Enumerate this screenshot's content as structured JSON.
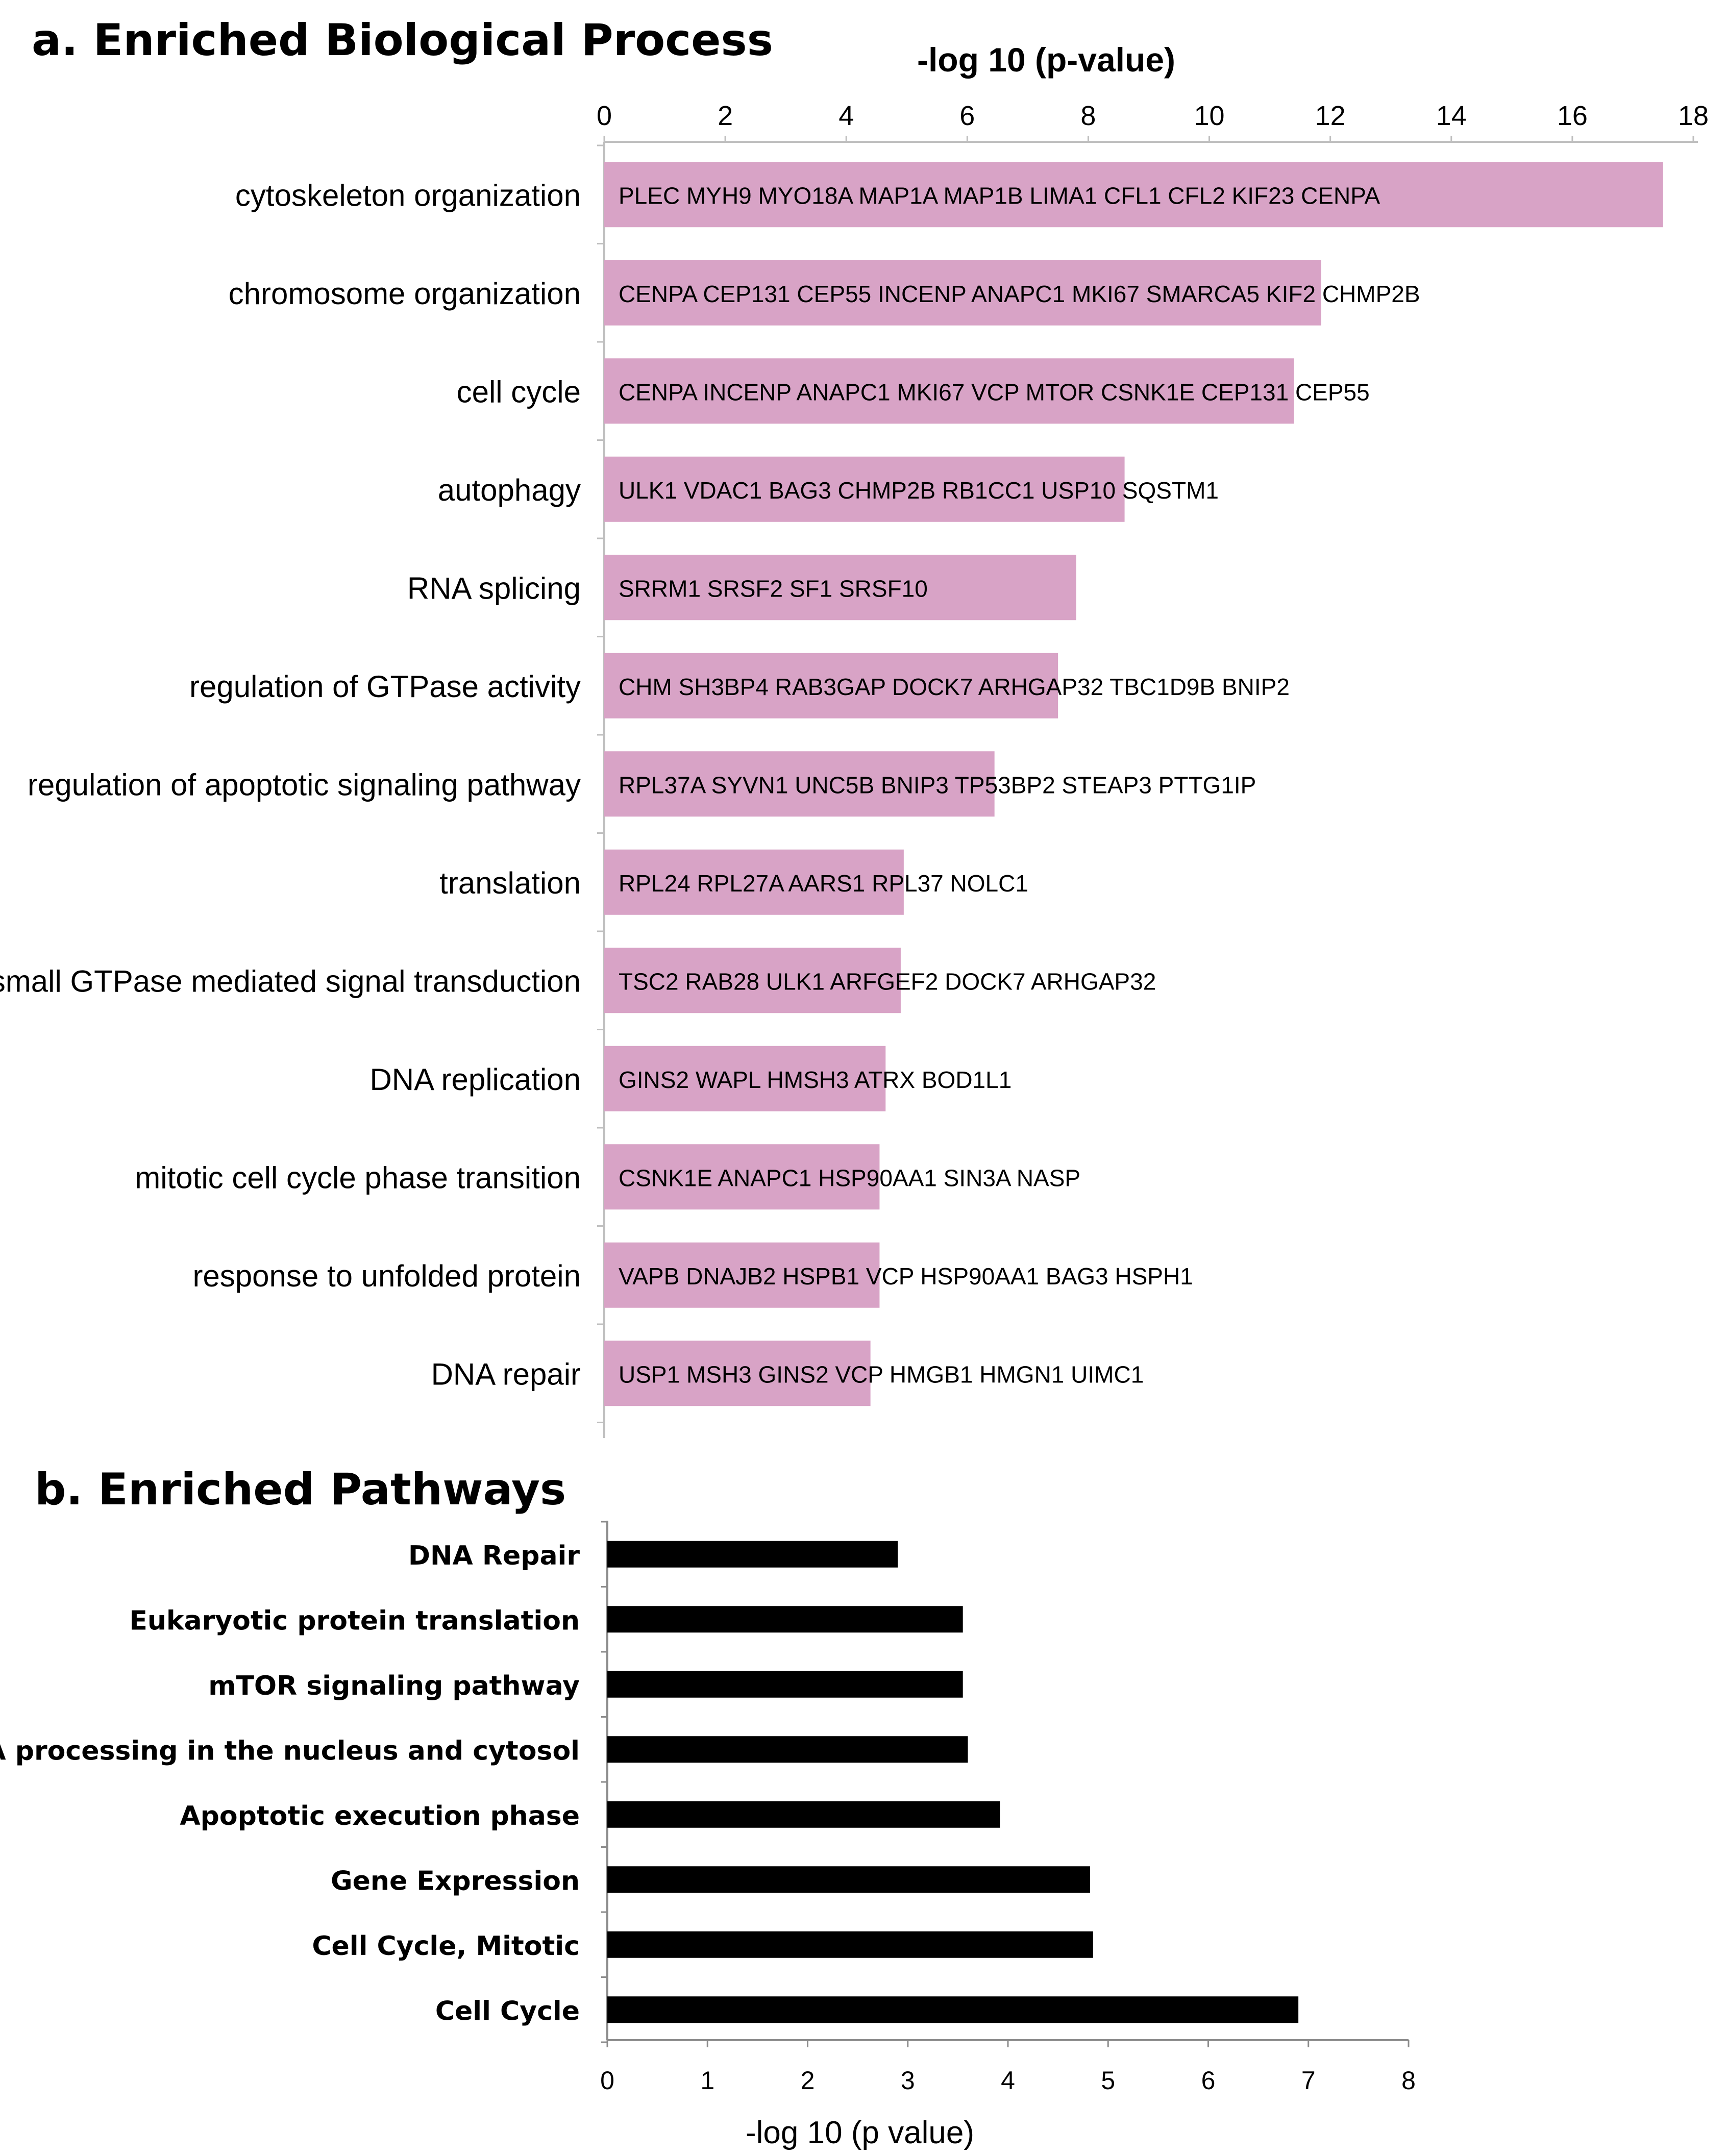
{
  "chart_data": [
    {
      "panel": "a",
      "title": "a. Enriched Biological Process",
      "type": "bar",
      "orientation": "horizontal",
      "xlabel": "-log 10 (p-value)",
      "xlim": [
        0,
        18
      ],
      "xticks": [
        "0",
        "2",
        "4",
        "6",
        "8",
        "10",
        "12",
        "14",
        "16",
        "18"
      ],
      "axis_position": "top",
      "bar_color": "#d8a3c6",
      "categories": [
        "cytoskeleton organization",
        "chromosome organization",
        "cell cycle",
        "autophagy",
        "RNA splicing",
        "regulation of GTPase activity",
        "regulation of apoptotic signaling pathway",
        "translation",
        "small GTPase mediated signal transduction",
        "DNA replication",
        "mitotic cell cycle phase transition",
        "response to unfolded protein",
        "DNA repair"
      ],
      "values": [
        17.5,
        11.85,
        11.4,
        8.6,
        7.8,
        7.5,
        6.45,
        4.95,
        4.9,
        4.65,
        4.55,
        4.55,
        4.4
      ],
      "annotations": [
        "PLEC MYH9 MYO18A MAP1A MAP1B LIMA1 CFL1 CFL2  KIF23  CENPA",
        "CENPA CEP131 CEP55  INCENP ANAPC1 MKI67  SMARCA5 KIF2 CHMP2B",
        "CENPA INCENP  ANAPC1 MKI67  VCP  MTOR CSNK1E CEP131 CEP55",
        "ULK1  VDAC1 BAG3 CHMP2B  RB1CC1 USP10  SQSTM1",
        "SRRM1  SRSF2 SF1  SRSF10",
        "CHM SH3BP4 RAB3GAP  DOCK7  ARHGAP32  TBC1D9B  BNIP2",
        "RPL37A  SYVN1  UNC5B BNIP3  TP53BP2 STEAP3  PTTG1IP",
        "RPL24 RPL27A AARS1 RPL37  NOLC1",
        "TSC2  RAB28  ULK1  ARFGEF2  DOCK7  ARHGAP32",
        "GINS2  WAPL  HMSH3  ATRX   BOD1L1",
        "CSNK1E  ANAPC1  HSP90AA1  SIN3A  NASP",
        "VAPB  DNAJB2 HSPB1  VCP HSP90AA1  BAG3  HSPH1",
        "USP1  MSH3  GINS2  VCP  HMGB1  HMGN1  UIMC1"
      ]
    },
    {
      "panel": "b",
      "title": "b. Enriched Pathways",
      "type": "bar",
      "orientation": "horizontal",
      "xlabel": "-log 10 (p value)",
      "xlim": [
        0,
        8
      ],
      "xticks": [
        "0",
        "1",
        "2",
        "3",
        "4",
        "5",
        "6",
        "7",
        "8"
      ],
      "axis_position": "bottom",
      "bar_color": "#000000",
      "categories": [
        "DNA Repair",
        "Eukaryotic protein translation",
        "mTOR signaling pathway",
        "rRNA processing in the nucleus and cytosol",
        "Apoptotic execution  phase",
        "Gene Expression",
        "Cell Cycle, Mitotic",
        "Cell Cycle"
      ],
      "values": [
        2.9,
        3.55,
        3.55,
        3.6,
        3.92,
        4.82,
        4.85,
        6.9
      ]
    }
  ]
}
